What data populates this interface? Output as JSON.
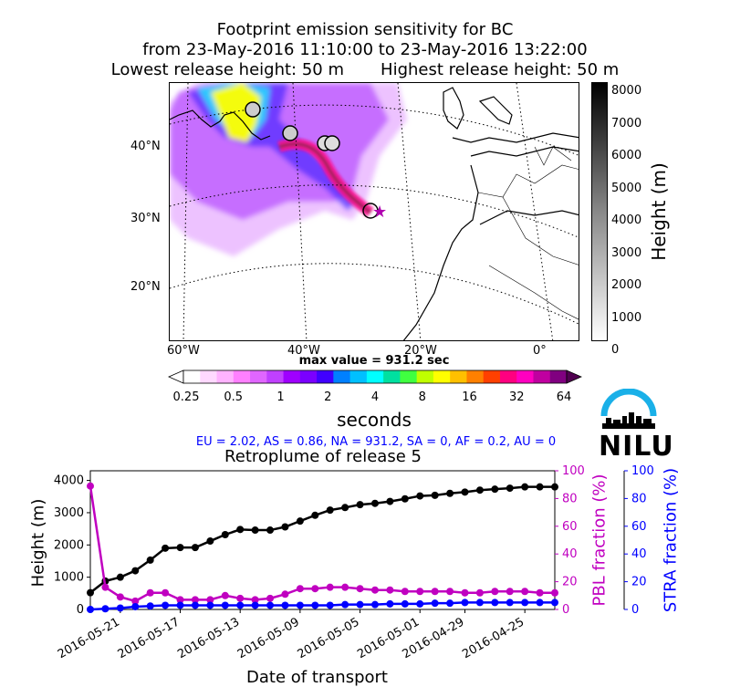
{
  "header": {
    "line1": "Footprint emission sensitivity for BC",
    "line2": "from 23-May-2016 11:10:00 to 23-May-2016 13:22:00",
    "line3": "Lowest release height: 50 m       Highest release height: 50 m"
  },
  "map": {
    "lat_labels": [
      "40°N",
      "30°N",
      "20°N"
    ],
    "lon_labels": [
      "60°W",
      "40°W",
      "20°W",
      "0°"
    ],
    "max_value": "max value = 931.2 sec",
    "colors": {
      "land_line": "#000000",
      "grid": "#000000"
    }
  },
  "height_colorbar": {
    "label": "Height (m)",
    "ticks": [
      "8000",
      "7000",
      "6000",
      "5000",
      "4000",
      "3000",
      "2000",
      "1000",
      "0"
    ]
  },
  "seconds_colorbar": {
    "label": "seconds",
    "ticks": [
      "0.25",
      "0.5",
      "1",
      "2",
      "4",
      "8",
      "16",
      "32",
      "64"
    ],
    "colors": [
      "#ffffff",
      "#ffd9ff",
      "#ffb3ff",
      "#ff80ff",
      "#e066ff",
      "#c040ff",
      "#9f00ff",
      "#7a00ff",
      "#4000ff",
      "#0080ff",
      "#00c0ff",
      "#00ffff",
      "#00e0a0",
      "#40ff40",
      "#c0ff00",
      "#ffff00",
      "#ffc000",
      "#ff8000",
      "#ff4000",
      "#ff0080",
      "#ff00c0",
      "#c000a0",
      "#800080"
    ]
  },
  "logo": {
    "text": "NILU",
    "icon": "nilu-skyline-icon"
  },
  "fractions_text": "EU = 2.02,  AS = 0.86,  NA = 931.2,  SA = 0,  AF = 0.2,  AU = 0",
  "chart_data": {
    "type": "line",
    "title": "Retroplume of release 5",
    "xlabel": "Date of transport",
    "ylabel": "Height (m)",
    "y2label": "PBL fraction (%)",
    "y3label": "STRA fraction (%)",
    "ylim": [
      0,
      4300
    ],
    "y2lim": [
      0,
      100
    ],
    "y3lim": [
      0,
      100
    ],
    "x_tick_labels": [
      "2016-05-21",
      "2016-05-17",
      "2016-05-13",
      "2016-05-09",
      "2016-05-05",
      "2016-05-01",
      "2016-04-29",
      "2016-04-25"
    ],
    "y_ticks": [
      "0",
      "1000",
      "2000",
      "3000",
      "4000"
    ],
    "y2_ticks": [
      "0",
      "20",
      "40",
      "60",
      "80",
      "100"
    ],
    "y3_ticks": [
      "0",
      "20",
      "40",
      "60",
      "80",
      "100"
    ],
    "series": [
      {
        "name": "Height",
        "axis": "left",
        "color": "#000000",
        "values": [
          520,
          880,
          1000,
          1200,
          1530,
          1900,
          1920,
          1920,
          2120,
          2320,
          2480,
          2460,
          2460,
          2560,
          2740,
          2920,
          3080,
          3160,
          3250,
          3290,
          3350,
          3430,
          3520,
          3540,
          3600,
          3640,
          3700,
          3730,
          3760,
          3800,
          3800,
          3800
        ]
      },
      {
        "name": "PBL fraction",
        "axis": "right",
        "color": "#c000c0",
        "values": [
          89,
          16,
          9,
          6,
          12,
          12,
          7,
          7,
          7,
          10,
          8,
          7,
          8,
          11,
          15,
          15,
          16,
          16,
          15,
          14,
          14,
          13,
          13,
          13,
          13,
          12,
          12,
          13,
          13,
          13,
          12,
          12
        ]
      },
      {
        "name": "STRA fraction",
        "axis": "right2",
        "color": "#0000ff",
        "values": [
          0,
          0.5,
          1,
          2,
          2.5,
          3,
          3,
          3,
          3,
          3,
          3,
          3,
          3,
          3,
          3,
          3,
          3,
          3.5,
          3.5,
          3.5,
          4,
          4,
          4,
          4.5,
          4.5,
          5,
          5,
          5,
          5,
          5,
          5,
          5
        ]
      }
    ]
  }
}
